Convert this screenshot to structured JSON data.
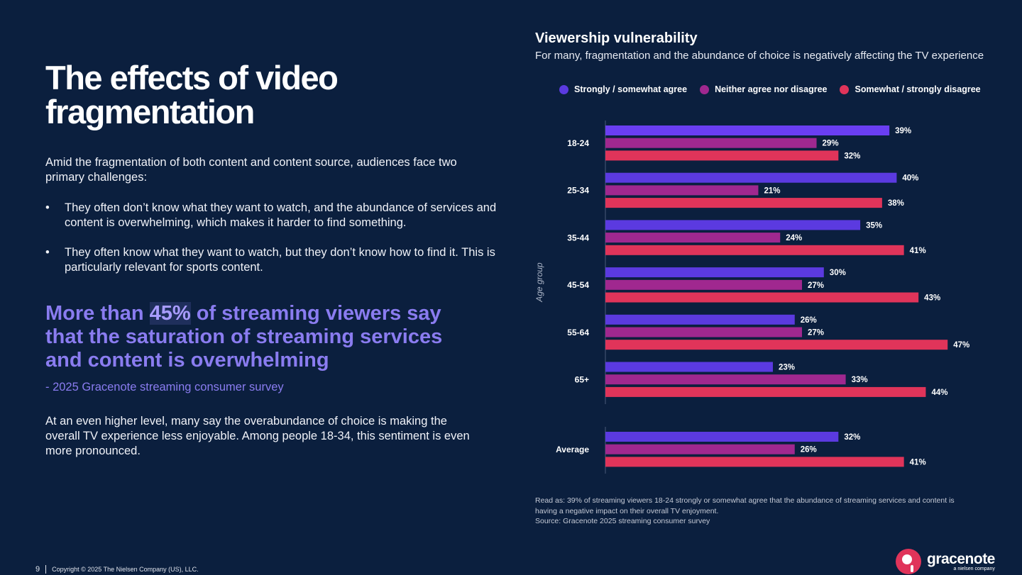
{
  "left": {
    "title": "The effects of video fragmentation",
    "intro": "Amid the fragmentation of both content and content source, audiences face two primary challenges:",
    "bullets": [
      "They often don’t know what they want to watch, and the abundance of services and content is overwhelming, which makes it harder to find something.",
      "They often know what they want to watch, but they don’t know how to find it. This is particularly relevant for sports content."
    ],
    "quote_pre": "More than ",
    "quote_hl": "45%",
    "quote_post": " of streaming viewers say that the saturation of streaming services and content is overwhelming",
    "quote_source": "- 2025 Gracenote streaming consumer survey",
    "outro": "At an even higher level, many say the overabundance of choice is making the overall TV experience less enjoyable. Among people 18-34, this sentiment is even more pronounced."
  },
  "chart_data": {
    "type": "bar",
    "orientation": "horizontal",
    "title": "Viewership vulnerability",
    "subtitle": "For many, fragmentation and the abundance of choice is negatively affecting the TV experience",
    "ylabel": "Age group",
    "categories": [
      "18-24",
      "25-34",
      "35-44",
      "45-54",
      "55-64",
      "65+",
      "Average"
    ],
    "series": [
      {
        "name": "Strongly / somewhat agree",
        "color": "#5b3ae0",
        "values": [
          39,
          40,
          35,
          30,
          26,
          23,
          32
        ]
      },
      {
        "name": "Neither agree nor disagree",
        "color": "#a0288f",
        "values": [
          29,
          21,
          24,
          27,
          27,
          33,
          26
        ]
      },
      {
        "name": "Somewhat / strongly disagree",
        "color": "#e0345a",
        "values": [
          32,
          38,
          41,
          43,
          47,
          44,
          41
        ]
      }
    ],
    "value_suffix": "%",
    "legend": "top",
    "xlim": [
      0,
      50
    ]
  },
  "notes": [
    "Read as: 39% of streaming viewers 18-24 strongly or somewhat agree that the abundance of streaming services and content is having a negative impact on their overall TV enjoyment.",
    "Source: Gracenote 2025 streaming consumer survey"
  ],
  "footer": {
    "page": "9",
    "copyright": "Copyright © 2025 The Nielsen Company (US), LLC."
  },
  "logo": {
    "name": "gracenote",
    "tagline": "a nielsen company"
  }
}
